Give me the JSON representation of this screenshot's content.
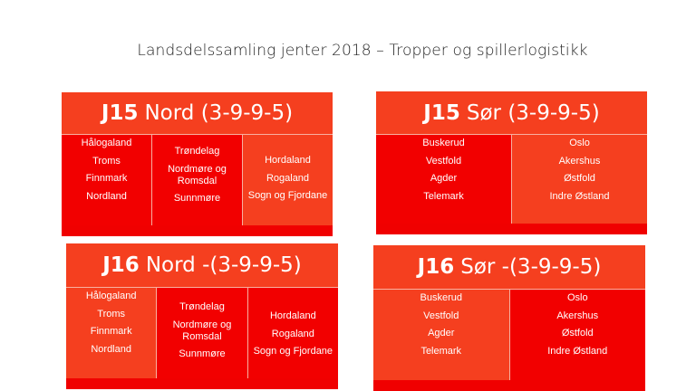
{
  "title": "Landsdelssamling jenter 2018 – Tropper og spillerlogistikk",
  "cards": [
    {
      "bold": "J15",
      "rest": "Nord (3-9-9-5)",
      "columns": [
        {
          "items": [
            "Hålogaland",
            "Troms",
            "Finnmark",
            "Nordland"
          ]
        },
        {
          "items": [
            "Trøndelag",
            "Nordmøre og Romsdal",
            "Sunnmøre"
          ]
        },
        {
          "items": [
            "Hordaland",
            "Rogaland",
            "Sogn og Fjordane"
          ]
        }
      ]
    },
    {
      "bold": "J15",
      "rest": "Sør (3-9-9-5)",
      "columns": [
        {
          "items": [
            "Buskerud",
            "Vestfold",
            "Agder",
            "Telemark"
          ]
        },
        {
          "items": [
            "Oslo",
            "Akershus",
            "Østfold",
            "Indre Østland"
          ]
        }
      ]
    },
    {
      "bold": "J16",
      "rest": "Nord -(3-9-9-5)",
      "columns": [
        {
          "items": [
            "Hålogaland",
            "Troms",
            "Finnmark",
            "Nordland"
          ]
        },
        {
          "items": [
            "Trøndelag",
            "Nordmøre og Romsdal",
            "Sunnmøre"
          ]
        },
        {
          "items": [
            "Hordaland",
            "Rogaland",
            "Sogn og Fjordane"
          ]
        }
      ]
    },
    {
      "bold": "J16",
      "rest": "Sør -(3-9-9-5)",
      "columns": [
        {
          "items": [
            "Buskerud",
            "Vestfold",
            "Agder",
            "Telemark"
          ]
        },
        {
          "items": [
            "Oslo",
            "Akershus",
            "Østfold",
            "Indre Østland"
          ]
        }
      ]
    }
  ],
  "colors": {
    "header": "#f53f1f",
    "dark": "#f20000",
    "light": "#f53f1f"
  }
}
